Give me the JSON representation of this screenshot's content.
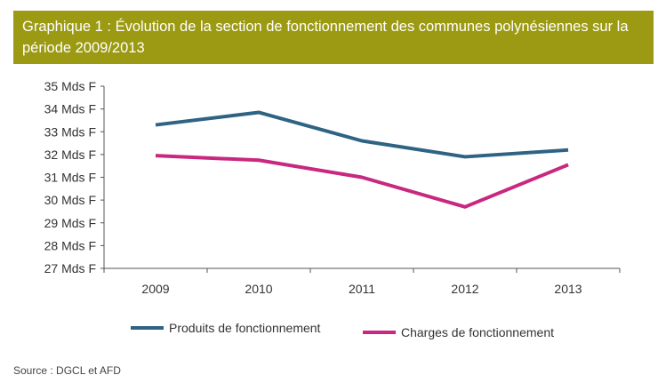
{
  "chart_data": {
    "type": "line",
    "title": "Graphique 1 : Évolution de la section de fonctionnement des communes polynésiennes sur la période 2009/2013",
    "categories": [
      "2009",
      "2010",
      "2011",
      "2012",
      "2013"
    ],
    "yticks": [
      "27 Mds F",
      "28 Mds F",
      "29 Mds F",
      "30 Mds F",
      "31 Mds F",
      "32 Mds F",
      "33 Mds F",
      "34 Mds F",
      "35 Mds F"
    ],
    "ylim": [
      27,
      35
    ],
    "unit": "Mds F",
    "grid": false,
    "legend": "bottom",
    "series": [
      {
        "name": "Produits de fonctionnement",
        "color": "#2e6384",
        "values": [
          33.3,
          33.85,
          32.6,
          31.9,
          32.2
        ]
      },
      {
        "name": "Charges de fonctionnement",
        "color": "#c8287f",
        "values": [
          31.95,
          31.75,
          31.0,
          29.7,
          31.55
        ]
      }
    ]
  },
  "source": "Source : DGCL et AFD"
}
